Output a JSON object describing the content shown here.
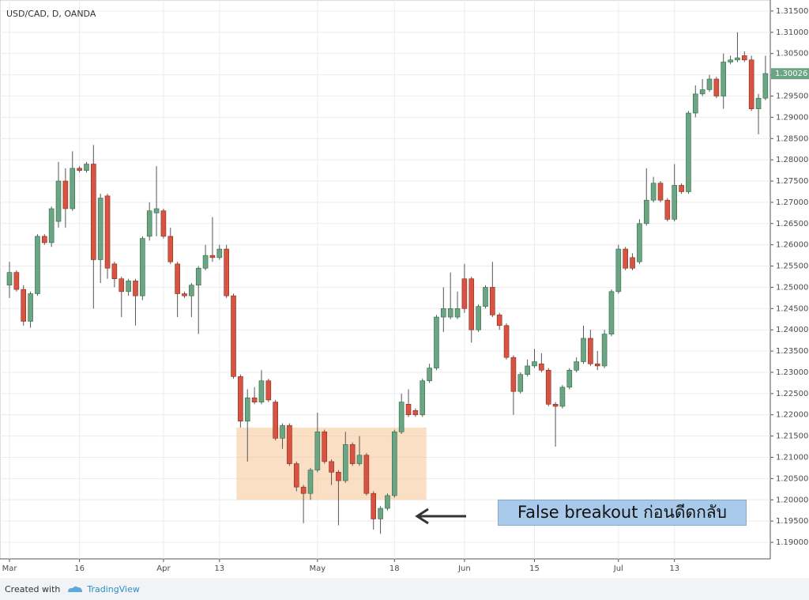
{
  "chart_data": {
    "type": "candlestick",
    "title": "USD/CAD, D, OANDA",
    "categories": [
      "Mar",
      null,
      null,
      null,
      null,
      null,
      null,
      null,
      null,
      null,
      "16",
      null,
      null,
      null,
      null,
      null,
      null,
      null,
      null,
      null,
      null,
      null,
      "Apr",
      null,
      null,
      null,
      null,
      null,
      null,
      null,
      "13",
      null,
      null,
      null,
      null,
      null,
      null,
      null,
      null,
      null,
      null,
      null,
      null,
      null,
      "May",
      null,
      null,
      null,
      null,
      null,
      null,
      null,
      null,
      null,
      null,
      "18",
      null,
      null,
      null,
      null,
      null,
      null,
      null,
      null,
      null,
      "Jun",
      null,
      null,
      null,
      null,
      null,
      null,
      null,
      null,
      null,
      "15",
      null,
      null,
      null,
      null,
      null,
      null,
      null,
      null,
      null,
      null,
      null,
      "Jul",
      null,
      null,
      null,
      null,
      null,
      null,
      null,
      "13",
      null,
      null,
      null,
      null,
      null,
      null,
      null,
      null,
      null,
      null,
      null,
      null,
      null
    ],
    "open": [
      1.2505,
      1.2535,
      1.2495,
      1.242,
      1.2485,
      1.262,
      1.2605,
      1.2655,
      1.275,
      1.2685,
      1.278,
      1.2775,
      1.279,
      1.2565,
      1.2715,
      1.2555,
      1.252,
      1.249,
      1.2515,
      1.248,
      1.262,
      1.2675,
      1.268,
      1.262,
      1.2555,
      1.2485,
      1.248,
      1.2505,
      1.2545,
      1.2575,
      1.257,
      1.259,
      1.248,
      1.229,
      1.2185,
      1.224,
      1.223,
      1.228,
      1.223,
      1.2145,
      1.2175,
      1.2085,
      1.203,
      1.2015,
      1.207,
      1.216,
      1.209,
      1.2065,
      1.2045,
      1.213,
      1.2085,
      1.2105,
      1.2015,
      1.1955,
      1.198,
      1.201,
      1.216,
      1.2225,
      1.221,
      1.22,
      1.228,
      1.231,
      1.243,
      1.243,
      1.243,
      1.252,
      1.252,
      1.24,
      1.2455,
      1.25,
      1.2435,
      1.241,
      1.2335,
      1.2255,
      1.2295,
      1.2315,
      1.232,
      1.2305,
      1.2225,
      1.222,
      1.2265,
      1.2305,
      1.2325,
      1.238,
      1.232,
      1.2315,
      1.239,
      1.249,
      1.259,
      1.257,
      1.256,
      1.265,
      1.2705,
      1.2745,
      1.2705,
      1.266,
      1.274,
      1.2725,
      1.291,
      1.2955,
      1.2965,
      1.299,
      1.295,
      1.303,
      1.3035,
      1.3045,
      1.3035,
      1.292,
      1.2945
    ],
    "high": [
      1.256,
      1.254,
      1.2505,
      1.249,
      1.2625,
      1.2625,
      1.269,
      1.2795,
      1.278,
      1.282,
      1.2785,
      1.2795,
      1.2835,
      1.272,
      1.272,
      1.256,
      1.2525,
      1.252,
      1.252,
      1.262,
      1.27,
      1.2785,
      1.2685,
      1.264,
      1.256,
      1.249,
      1.251,
      1.255,
      1.26,
      1.2665,
      1.26,
      1.26,
      1.2485,
      1.2295,
      1.226,
      1.2265,
      1.2305,
      1.2285,
      1.2235,
      1.218,
      1.218,
      1.209,
      1.2035,
      1.2075,
      1.2205,
      1.2165,
      1.2095,
      1.207,
      1.216,
      1.2135,
      1.215,
      1.211,
      1.202,
      1.1985,
      1.2015,
      1.2165,
      1.225,
      1.226,
      1.2215,
      1.2285,
      1.232,
      1.2435,
      1.25,
      1.2535,
      1.249,
      1.2555,
      1.2525,
      1.246,
      1.2505,
      1.256,
      1.244,
      1.2415,
      1.234,
      1.23,
      1.233,
      1.2355,
      1.2345,
      1.231,
      1.223,
      1.227,
      1.231,
      1.2335,
      1.241,
      1.24,
      1.235,
      1.24,
      1.2495,
      1.26,
      1.2595,
      1.258,
      1.266,
      1.278,
      1.276,
      1.275,
      1.271,
      1.279,
      1.2745,
      1.2915,
      1.2975,
      1.299,
      1.3,
      1.2995,
      1.305,
      1.3045,
      1.31,
      1.3055,
      1.3045,
      1.2955,
      1.3045
    ],
    "low": [
      1.2475,
      1.249,
      1.241,
      1.2405,
      1.248,
      1.26,
      1.2595,
      1.264,
      1.264,
      1.268,
      1.277,
      1.277,
      1.245,
      1.251,
      1.252,
      1.25,
      1.243,
      1.248,
      1.241,
      1.247,
      1.261,
      1.262,
      1.2615,
      1.2555,
      1.243,
      1.2475,
      1.243,
      1.239,
      1.254,
      1.256,
      1.2565,
      1.2475,
      1.2285,
      1.217,
      1.209,
      1.2225,
      1.2225,
      1.223,
      1.214,
      1.212,
      1.208,
      1.202,
      1.1945,
      1.2,
      1.2065,
      1.2085,
      1.2035,
      1.194,
      1.204,
      1.208,
      1.208,
      1.201,
      1.193,
      1.192,
      1.1975,
      1.2005,
      1.2155,
      1.2195,
      1.2195,
      1.2195,
      1.2275,
      1.2305,
      1.2395,
      1.2425,
      1.2425,
      1.244,
      1.237,
      1.2395,
      1.245,
      1.243,
      1.24,
      1.233,
      1.22,
      1.225,
      1.229,
      1.231,
      1.23,
      1.222,
      1.2125,
      1.2215,
      1.226,
      1.23,
      1.232,
      1.2315,
      1.2305,
      1.231,
      1.2385,
      1.2485,
      1.254,
      1.254,
      1.2555,
      1.2645,
      1.27,
      1.27,
      1.2655,
      1.2655,
      1.272,
      1.272,
      1.29,
      1.295,
      1.296,
      1.2945,
      1.292,
      1.3025,
      1.303,
      1.303,
      1.2915,
      1.286,
      1.294
    ],
    "close": [
      1.2535,
      1.2495,
      1.242,
      1.2485,
      1.262,
      1.2605,
      1.2685,
      1.275,
      1.2685,
      1.278,
      1.2775,
      1.279,
      1.2565,
      1.271,
      1.2545,
      1.252,
      1.249,
      1.2515,
      1.248,
      1.2615,
      1.268,
      1.2685,
      1.262,
      1.256,
      1.2485,
      1.248,
      1.2505,
      1.2545,
      1.2575,
      1.257,
      1.259,
      1.248,
      1.229,
      1.2185,
      1.224,
      1.223,
      1.228,
      1.2235,
      1.2145,
      1.2175,
      1.2085,
      1.203,
      1.2015,
      1.207,
      1.216,
      1.209,
      1.2065,
      1.2045,
      1.213,
      1.2085,
      1.2105,
      1.2015,
      1.1955,
      1.198,
      1.201,
      1.216,
      1.223,
      1.22,
      1.22,
      1.228,
      1.231,
      1.243,
      1.245,
      1.245,
      1.245,
      1.245,
      1.24,
      1.2455,
      1.25,
      1.2435,
      1.241,
      1.2335,
      1.2255,
      1.2295,
      1.2315,
      1.2325,
      1.2305,
      1.2225,
      1.222,
      1.2265,
      1.2305,
      1.2325,
      1.238,
      1.232,
      1.2315,
      1.239,
      1.249,
      1.259,
      1.2545,
      1.2545,
      1.265,
      1.2705,
      1.2745,
      1.2705,
      1.266,
      1.274,
      1.2725,
      1.291,
      1.2955,
      1.2965,
      1.299,
      1.295,
      1.303,
      1.3035,
      1.304,
      1.3035,
      1.292,
      1.2945,
      1.3003
    ],
    "up_color": "#6ba583",
    "down_color": "#d75442",
    "ylim": [
      1.1861,
      1.3176
    ],
    "yticks": [
      {
        "value": 1.19,
        "label": "1.19000"
      },
      {
        "value": 1.195,
        "label": "1.19500"
      },
      {
        "value": 1.2,
        "label": "1.20000"
      },
      {
        "value": 1.205,
        "label": "1.20500"
      },
      {
        "value": 1.21,
        "label": "1.21000"
      },
      {
        "value": 1.215,
        "label": "1.21500"
      },
      {
        "value": 1.22,
        "label": "1.22000"
      },
      {
        "value": 1.225,
        "label": "1.22500"
      },
      {
        "value": 1.23,
        "label": "1.23000"
      },
      {
        "value": 1.235,
        "label": "1.23500"
      },
      {
        "value": 1.24,
        "label": "1.24000"
      },
      {
        "value": 1.245,
        "label": "1.24500"
      },
      {
        "value": 1.25,
        "label": "1.25000"
      },
      {
        "value": 1.255,
        "label": "1.25500"
      },
      {
        "value": 1.26,
        "label": "1.26000"
      },
      {
        "value": 1.265,
        "label": "1.26500"
      },
      {
        "value": 1.27,
        "label": "1.27000"
      },
      {
        "value": 1.275,
        "label": "1.27500"
      },
      {
        "value": 1.28,
        "label": "1.28000"
      },
      {
        "value": 1.285,
        "label": "1.28500"
      },
      {
        "value": 1.29,
        "label": "1.29000"
      },
      {
        "value": 1.295,
        "label": "1.29500"
      },
      {
        "value": 1.3,
        "label": "1.30000"
      },
      {
        "value": 1.305,
        "label": "1.30500"
      },
      {
        "value": 1.31,
        "label": "1.31000"
      },
      {
        "value": 1.315,
        "label": "1.31500"
      }
    ],
    "grid": true,
    "last_price": {
      "value": 1.30026,
      "label": "1.30026"
    },
    "zone": {
      "from": 1.2,
      "to": 1.217,
      "color": "#f5c596"
    },
    "annotation": "False breakout ก่อนดีดกลับ"
  },
  "footer": {
    "created": "Created with",
    "brand": "TradingView"
  }
}
